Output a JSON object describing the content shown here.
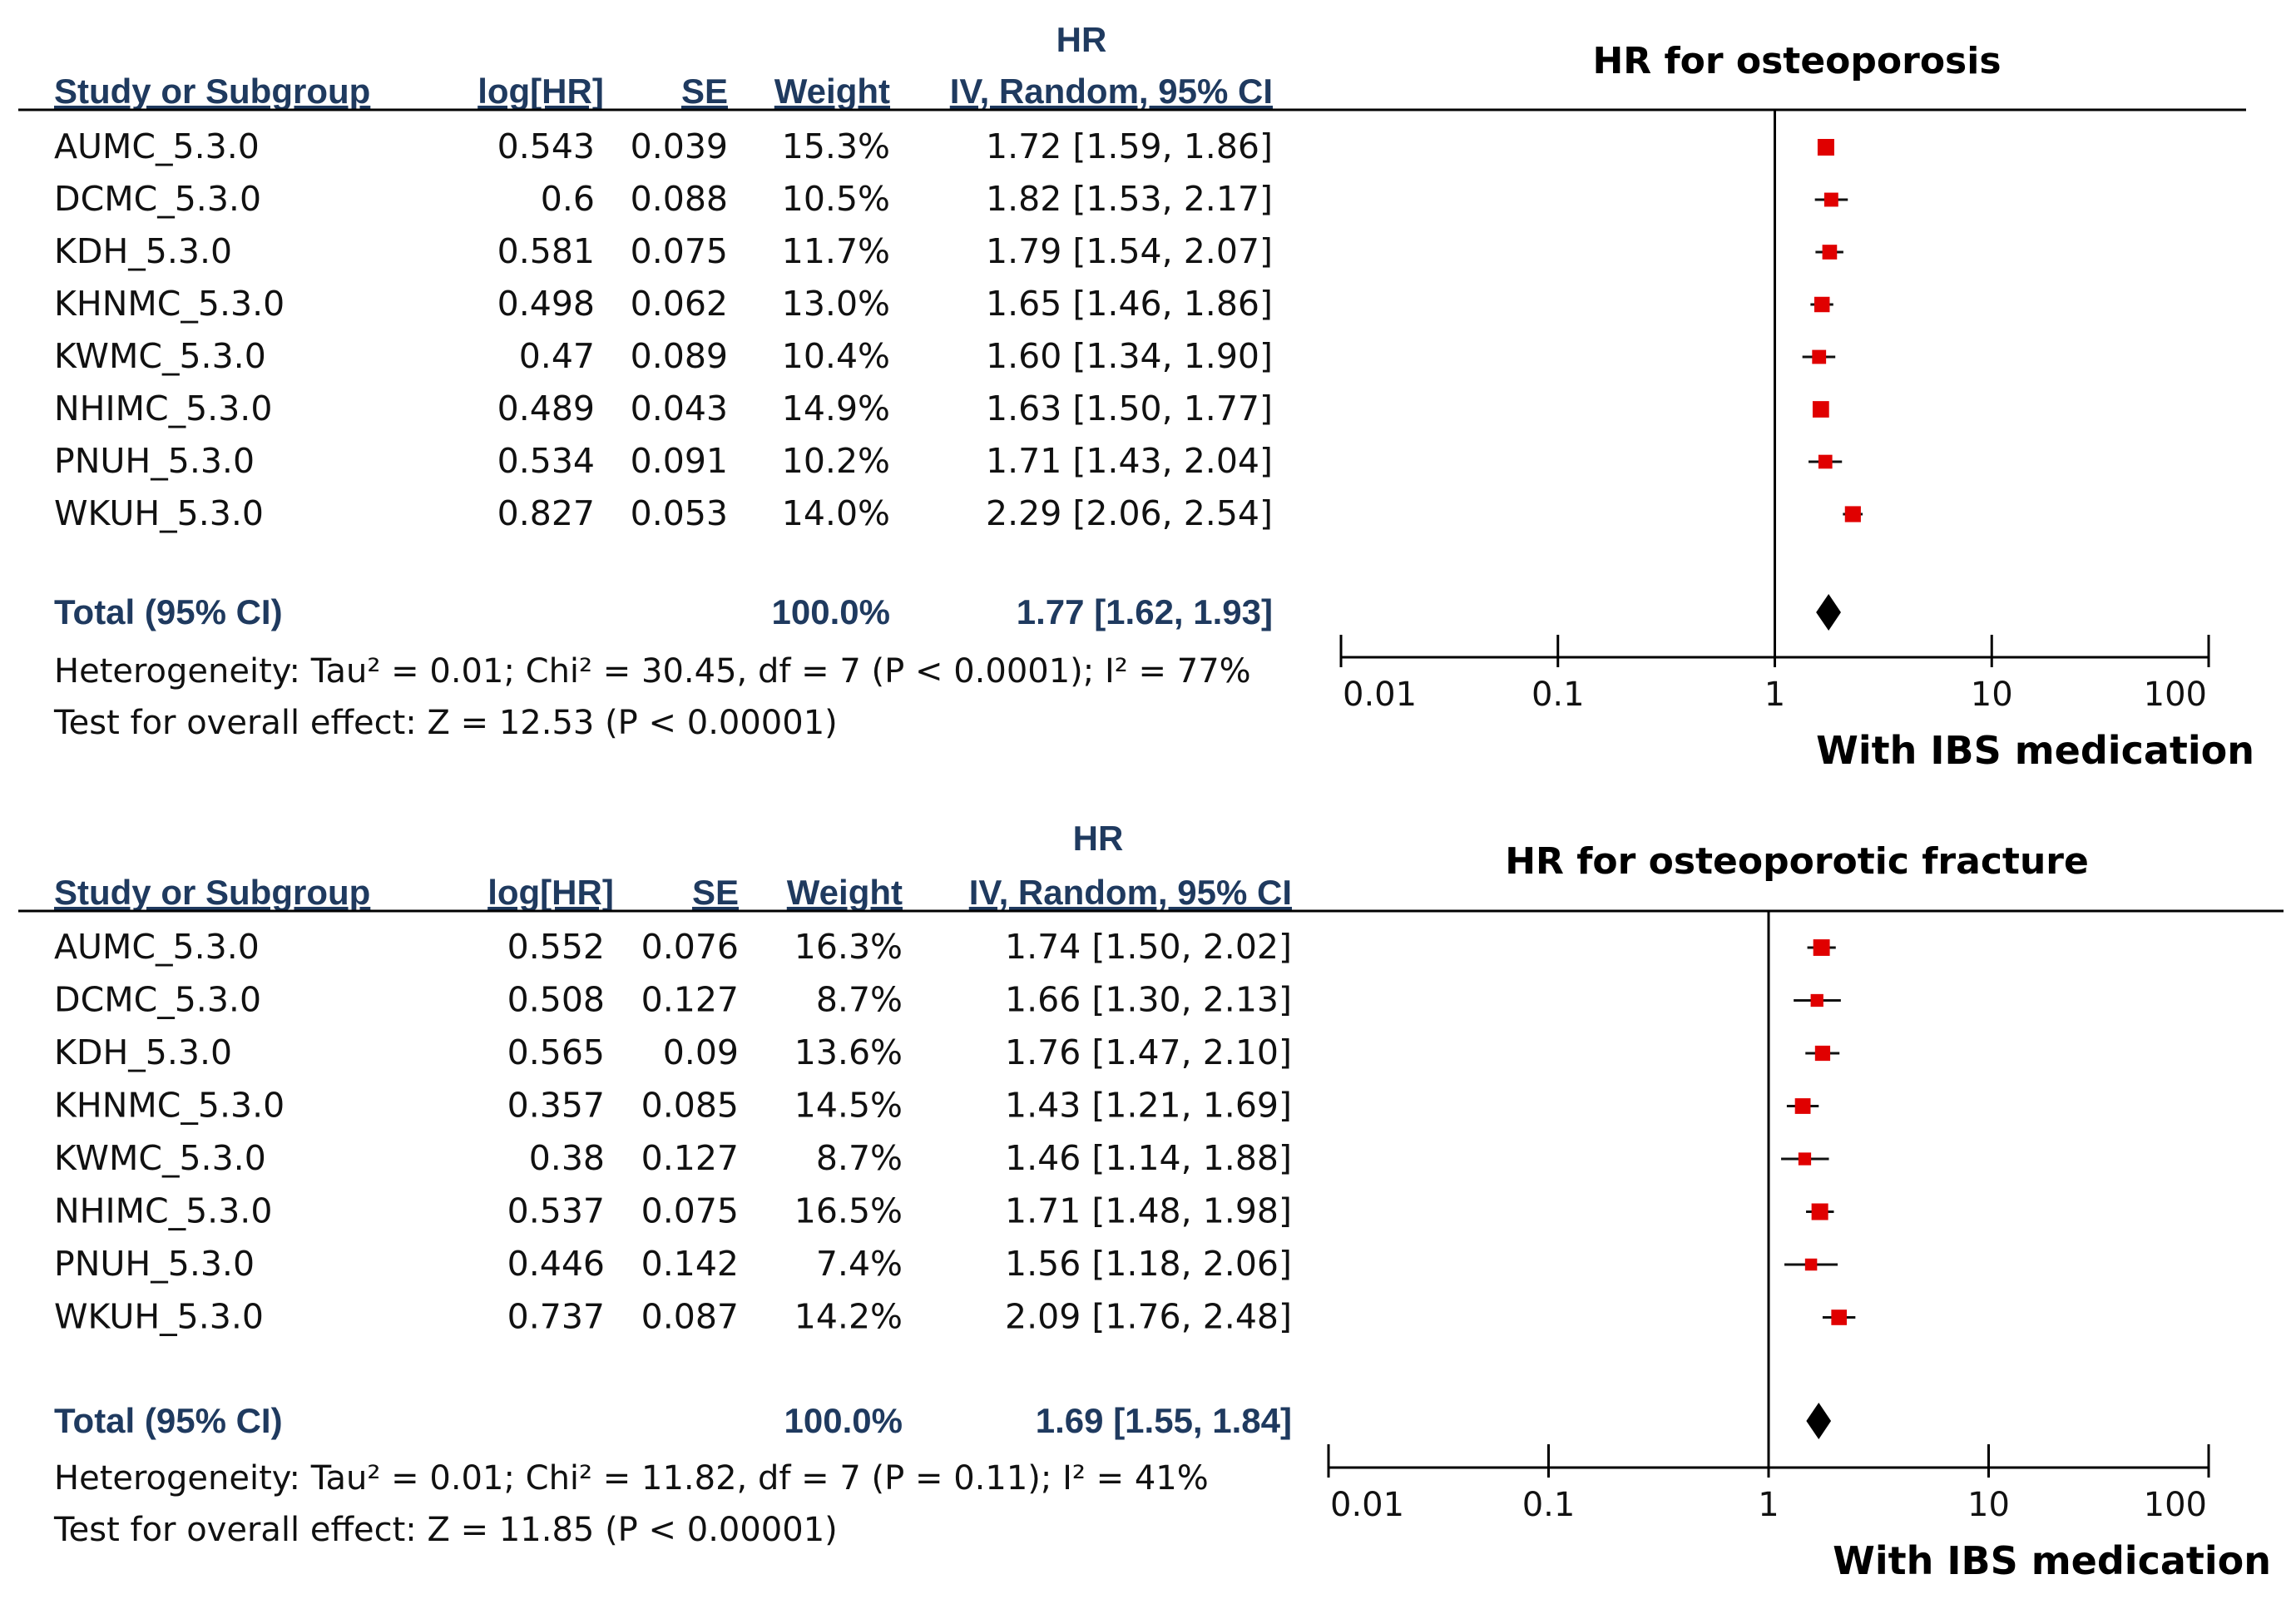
{
  "chart_data": [
    {
      "type": "forest",
      "title": "HR for osteoporosis",
      "effect_label": "HR",
      "method_label": "IV, Random, 95% CI",
      "columns": [
        "Study or Subgroup",
        "log[HR]",
        "SE",
        "Weight"
      ],
      "studies": [
        {
          "name": "AUMC_5.3.0",
          "log_hr": "0.543",
          "se": "0.039",
          "weight": "15.3%",
          "weight_value": 15.3,
          "hr": 1.72,
          "ci_low": 1.59,
          "ci_high": 1.86,
          "ci_text": "1.72 [1.59, 1.86]"
        },
        {
          "name": "DCMC_5.3.0",
          "log_hr": "0.6",
          "se": "0.088",
          "weight": "10.5%",
          "weight_value": 10.5,
          "hr": 1.82,
          "ci_low": 1.53,
          "ci_high": 2.17,
          "ci_text": "1.82 [1.53, 2.17]"
        },
        {
          "name": "KDH_5.3.0",
          "log_hr": "0.581",
          "se": "0.075",
          "weight": "11.7%",
          "weight_value": 11.7,
          "hr": 1.79,
          "ci_low": 1.54,
          "ci_high": 2.07,
          "ci_text": "1.79 [1.54, 2.07]"
        },
        {
          "name": "KHNMC_5.3.0",
          "log_hr": "0.498",
          "se": "0.062",
          "weight": "13.0%",
          "weight_value": 13.0,
          "hr": 1.65,
          "ci_low": 1.46,
          "ci_high": 1.86,
          "ci_text": "1.65 [1.46, 1.86]"
        },
        {
          "name": "KWMC_5.3.0",
          "log_hr": "0.47",
          "se": "0.089",
          "weight": "10.4%",
          "weight_value": 10.4,
          "hr": 1.6,
          "ci_low": 1.34,
          "ci_high": 1.9,
          "ci_text": "1.60 [1.34, 1.90]"
        },
        {
          "name": "NHIMC_5.3.0",
          "log_hr": "0.489",
          "se": "0.043",
          "weight": "14.9%",
          "weight_value": 14.9,
          "hr": 1.63,
          "ci_low": 1.5,
          "ci_high": 1.77,
          "ci_text": "1.63 [1.50, 1.77]"
        },
        {
          "name": "PNUH_5.3.0",
          "log_hr": "0.534",
          "se": "0.091",
          "weight": "10.2%",
          "weight_value": 10.2,
          "hr": 1.71,
          "ci_low": 1.43,
          "ci_high": 2.04,
          "ci_text": "1.71 [1.43, 2.04]"
        },
        {
          "name": "WKUH_5.3.0",
          "log_hr": "0.827",
          "se": "0.053",
          "weight": "14.0%",
          "weight_value": 14.0,
          "hr": 2.29,
          "ci_low": 2.06,
          "ci_high": 2.54,
          "ci_text": "2.29 [2.06, 2.54]"
        }
      ],
      "total": {
        "label": "Total (95% CI)",
        "weight": "100.0%",
        "hr": 1.77,
        "ci_low": 1.62,
        "ci_high": 1.93,
        "ci_text": "1.77 [1.62, 1.93]"
      },
      "heterogeneity": "Heterogeneity: Tau² = 0.01; Chi² = 30.45, df = 7 (P < 0.0001); I² = 77%",
      "overall_effect": "Test for overall effect: Z = 12.53 (P < 0.00001)",
      "x_scale": "log",
      "xlim": [
        0.01,
        100
      ],
      "x_ticks": [
        0.01,
        0.1,
        1,
        10,
        100
      ],
      "x_tick_labels": [
        "0.01",
        "0.1",
        "1",
        "10",
        "100"
      ],
      "xlabel": "With IBS medication"
    },
    {
      "type": "forest",
      "title": "HR for osteoporotic fracture",
      "effect_label": "HR",
      "method_label": "IV, Random, 95% CI",
      "columns": [
        "Study or Subgroup",
        "log[HR]",
        "SE",
        "Weight"
      ],
      "studies": [
        {
          "name": "AUMC_5.3.0",
          "log_hr": "0.552",
          "se": "0.076",
          "weight": "16.3%",
          "weight_value": 16.3,
          "hr": 1.74,
          "ci_low": 1.5,
          "ci_high": 2.02,
          "ci_text": "1.74 [1.50, 2.02]"
        },
        {
          "name": "DCMC_5.3.0",
          "log_hr": "0.508",
          "se": "0.127",
          "weight": "8.7%",
          "weight_value": 8.7,
          "hr": 1.66,
          "ci_low": 1.3,
          "ci_high": 2.13,
          "ci_text": "1.66 [1.30, 2.13]"
        },
        {
          "name": "KDH_5.3.0",
          "log_hr": "0.565",
          "se": "0.09",
          "weight": "13.6%",
          "weight_value": 13.6,
          "hr": 1.76,
          "ci_low": 1.47,
          "ci_high": 2.1,
          "ci_text": "1.76 [1.47, 2.10]"
        },
        {
          "name": "KHNMC_5.3.0",
          "log_hr": "0.357",
          "se": "0.085",
          "weight": "14.5%",
          "weight_value": 14.5,
          "hr": 1.43,
          "ci_low": 1.21,
          "ci_high": 1.69,
          "ci_text": "1.43 [1.21, 1.69]"
        },
        {
          "name": "KWMC_5.3.0",
          "log_hr": "0.38",
          "se": "0.127",
          "weight": "8.7%",
          "weight_value": 8.7,
          "hr": 1.46,
          "ci_low": 1.14,
          "ci_high": 1.88,
          "ci_text": "1.46 [1.14, 1.88]"
        },
        {
          "name": "NHIMC_5.3.0",
          "log_hr": "0.537",
          "se": "0.075",
          "weight": "16.5%",
          "weight_value": 16.5,
          "hr": 1.71,
          "ci_low": 1.48,
          "ci_high": 1.98,
          "ci_text": "1.71 [1.48, 1.98]"
        },
        {
          "name": "PNUH_5.3.0",
          "log_hr": "0.446",
          "se": "0.142",
          "weight": "7.4%",
          "weight_value": 7.4,
          "hr": 1.56,
          "ci_low": 1.18,
          "ci_high": 2.06,
          "ci_text": "1.56 [1.18, 2.06]"
        },
        {
          "name": "WKUH_5.3.0",
          "log_hr": "0.737",
          "se": "0.087",
          "weight": "14.2%",
          "weight_value": 14.2,
          "hr": 2.09,
          "ci_low": 1.76,
          "ci_high": 2.48,
          "ci_text": "2.09 [1.76, 2.48]"
        }
      ],
      "total": {
        "label": "Total (95% CI)",
        "weight": "100.0%",
        "hr": 1.69,
        "ci_low": 1.55,
        "ci_high": 1.84,
        "ci_text": "1.69 [1.55, 1.84]"
      },
      "heterogeneity": "Heterogeneity: Tau² = 0.01; Chi² = 11.82, df = 7 (P = 0.11); I² = 41%",
      "overall_effect": "Test for overall effect: Z = 11.85 (P < 0.00001)",
      "x_scale": "log",
      "xlim": [
        0.01,
        100
      ],
      "x_ticks": [
        0.01,
        0.1,
        1,
        10,
        100
      ],
      "x_tick_labels": [
        "0.01",
        "0.1",
        "1",
        "10",
        "100"
      ],
      "xlabel": "With IBS medication"
    }
  ],
  "colors": {
    "header_text": "#1f3a5f",
    "marker": "#e00000",
    "ci_line": "#111111",
    "diamond": "#000000",
    "axis": "#000000"
  }
}
